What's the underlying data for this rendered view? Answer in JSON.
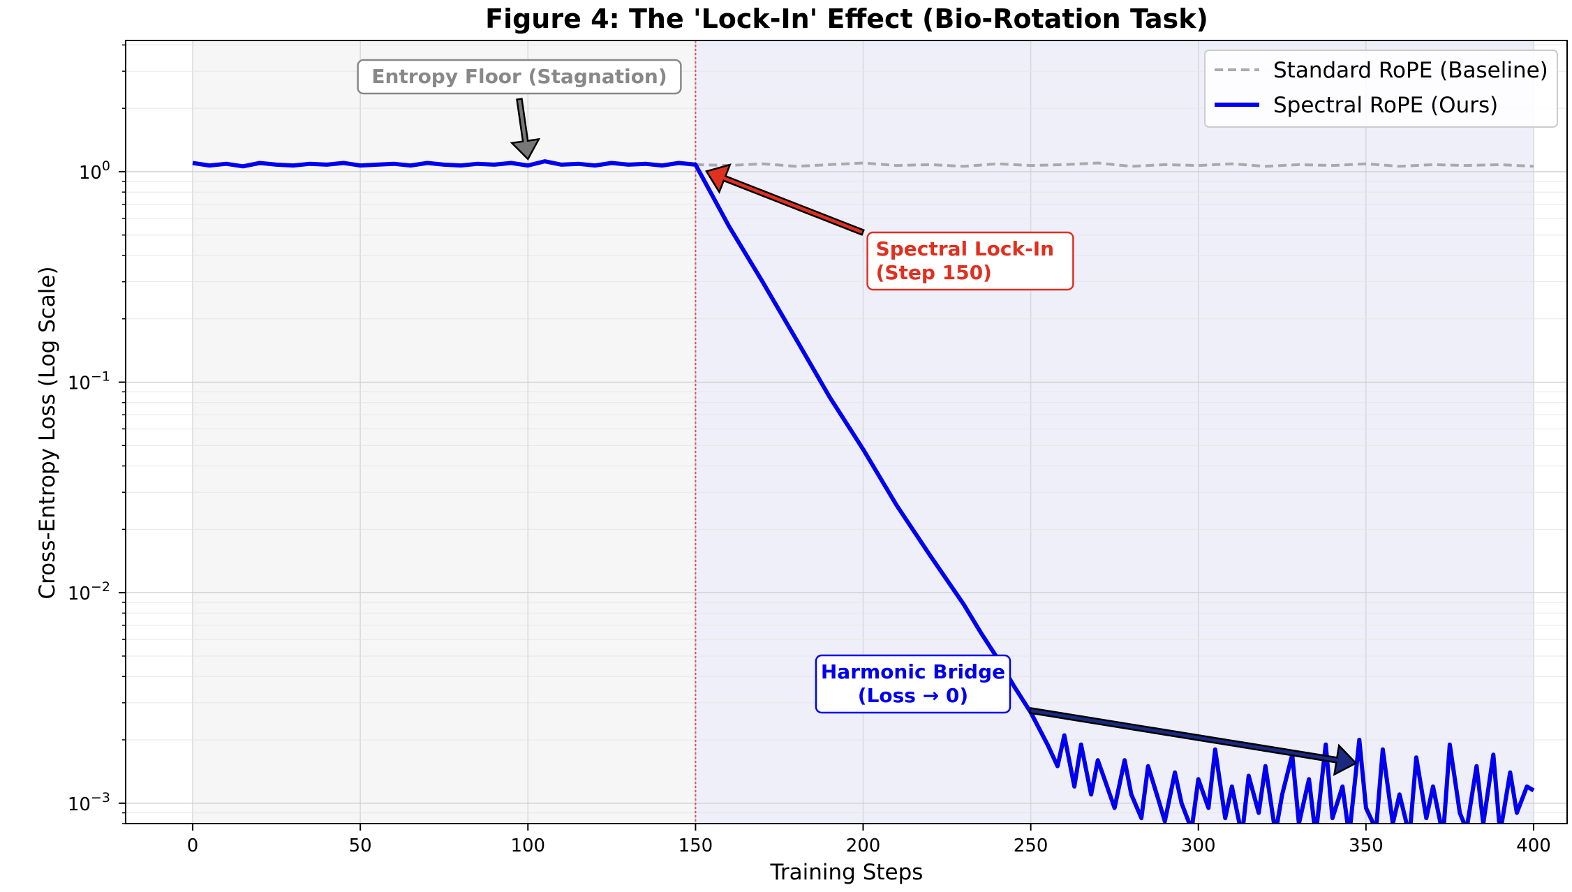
{
  "chart_data": {
    "type": "line",
    "title": "Figure 4: The 'Lock-In' Effect (Bio-Rotation Task)",
    "xlabel": "Training Steps",
    "ylabel": "Cross-Entropy Loss (Log Scale)",
    "xlim": [
      -20,
      410
    ],
    "ylim": [
      0.0008,
      4.2
    ],
    "yscale": "log",
    "grid": true,
    "legend_position": "top-right",
    "xticks": [
      0,
      50,
      100,
      150,
      200,
      250,
      300,
      350,
      400
    ],
    "yticks": [
      {
        "value": 1,
        "base": "10",
        "exp": "0"
      },
      {
        "value": 0.1,
        "base": "10",
        "exp": "−1"
      },
      {
        "value": 0.01,
        "base": "10",
        "exp": "−2"
      },
      {
        "value": 0.001,
        "base": "10",
        "exp": "−3"
      }
    ],
    "regions": [
      {
        "name": "stagnation",
        "x": [
          0,
          150
        ],
        "color": "#f6f6f6"
      },
      {
        "name": "lock-in",
        "x": [
          150,
          400
        ],
        "color": "#efeffa"
      }
    ],
    "vline": {
      "x": 150,
      "color": "#e05050"
    },
    "series": [
      {
        "name": "Standard RoPE (Baseline)",
        "color": "#aaaaaa",
        "style": "dashed",
        "x": [
          150,
          160,
          170,
          180,
          190,
          200,
          210,
          220,
          230,
          240,
          250,
          260,
          270,
          280,
          290,
          300,
          310,
          320,
          330,
          340,
          350,
          360,
          370,
          380,
          390,
          400
        ],
        "y": [
          1.08,
          1.07,
          1.09,
          1.06,
          1.08,
          1.1,
          1.07,
          1.08,
          1.06,
          1.09,
          1.07,
          1.08,
          1.1,
          1.06,
          1.08,
          1.07,
          1.09,
          1.06,
          1.08,
          1.07,
          1.09,
          1.06,
          1.08,
          1.07,
          1.08,
          1.06
        ]
      },
      {
        "name": "Spectral RoPE (Ours)",
        "color": "#0000ee",
        "style": "solid",
        "x": [
          0,
          5,
          10,
          15,
          20,
          25,
          30,
          35,
          40,
          45,
          50,
          55,
          60,
          65,
          70,
          75,
          80,
          85,
          90,
          95,
          100,
          105,
          110,
          115,
          120,
          125,
          130,
          135,
          140,
          145,
          150,
          160,
          170,
          180,
          190,
          200,
          210,
          220,
          230,
          235,
          240,
          245,
          250,
          255,
          258,
          260,
          263,
          265,
          268,
          270,
          272,
          275,
          278,
          280,
          283,
          285,
          288,
          290,
          293,
          295,
          298,
          300,
          303,
          305,
          308,
          310,
          313,
          315,
          318,
          320,
          323,
          325,
          328,
          330,
          333,
          335,
          338,
          340,
          343,
          345,
          348,
          350,
          353,
          355,
          358,
          360,
          363,
          365,
          368,
          370,
          373,
          375,
          378,
          380,
          383,
          385,
          388,
          390,
          393,
          395,
          398,
          400
        ],
        "y": [
          1.1,
          1.07,
          1.09,
          1.06,
          1.1,
          1.08,
          1.07,
          1.09,
          1.08,
          1.1,
          1.07,
          1.08,
          1.09,
          1.07,
          1.1,
          1.08,
          1.07,
          1.09,
          1.08,
          1.1,
          1.07,
          1.12,
          1.08,
          1.09,
          1.07,
          1.1,
          1.08,
          1.09,
          1.07,
          1.1,
          1.08,
          0.55,
          0.3,
          0.16,
          0.085,
          0.048,
          0.026,
          0.015,
          0.0088,
          0.0065,
          0.0049,
          0.0036,
          0.0027,
          0.0019,
          0.0015,
          0.0021,
          0.0012,
          0.0019,
          0.0011,
          0.0016,
          0.0013,
          0.00095,
          0.0016,
          0.0011,
          0.00085,
          0.0015,
          0.00105,
          0.00082,
          0.0014,
          0.001,
          0.00075,
          0.0013,
          0.00095,
          0.0018,
          0.00085,
          0.0012,
          0.0007,
          0.00135,
          0.0009,
          0.0015,
          0.00072,
          0.0011,
          0.0017,
          0.0008,
          0.0013,
          0.0007,
          0.0019,
          0.00085,
          0.0012,
          0.0007,
          0.002,
          0.00095,
          0.00075,
          0.0018,
          0.0008,
          0.0011,
          0.0007,
          0.00165,
          0.00085,
          0.0012,
          0.0007,
          0.0019,
          0.0009,
          0.00075,
          0.0015,
          0.0008,
          0.0017,
          0.00072,
          0.0014,
          0.0009,
          0.0012,
          0.00115
        ]
      }
    ],
    "annotations": [
      {
        "name": "entropy-floor",
        "text": [
          "Entropy Floor (Stagnation)"
        ],
        "color": "#888888",
        "arrow_to": [
          100,
          1.08
        ]
      },
      {
        "name": "spectral-lock-in",
        "text": [
          "Spectral Lock-In",
          "(Step 150)"
        ],
        "color": "#e03020",
        "arrow_to": [
          152,
          1.02
        ]
      },
      {
        "name": "harmonic-bridge",
        "text": [
          "Harmonic Bridge",
          "(Loss → 0)"
        ],
        "color": "#0000ee",
        "arrow_to": [
          347,
          0.00155
        ]
      }
    ]
  }
}
